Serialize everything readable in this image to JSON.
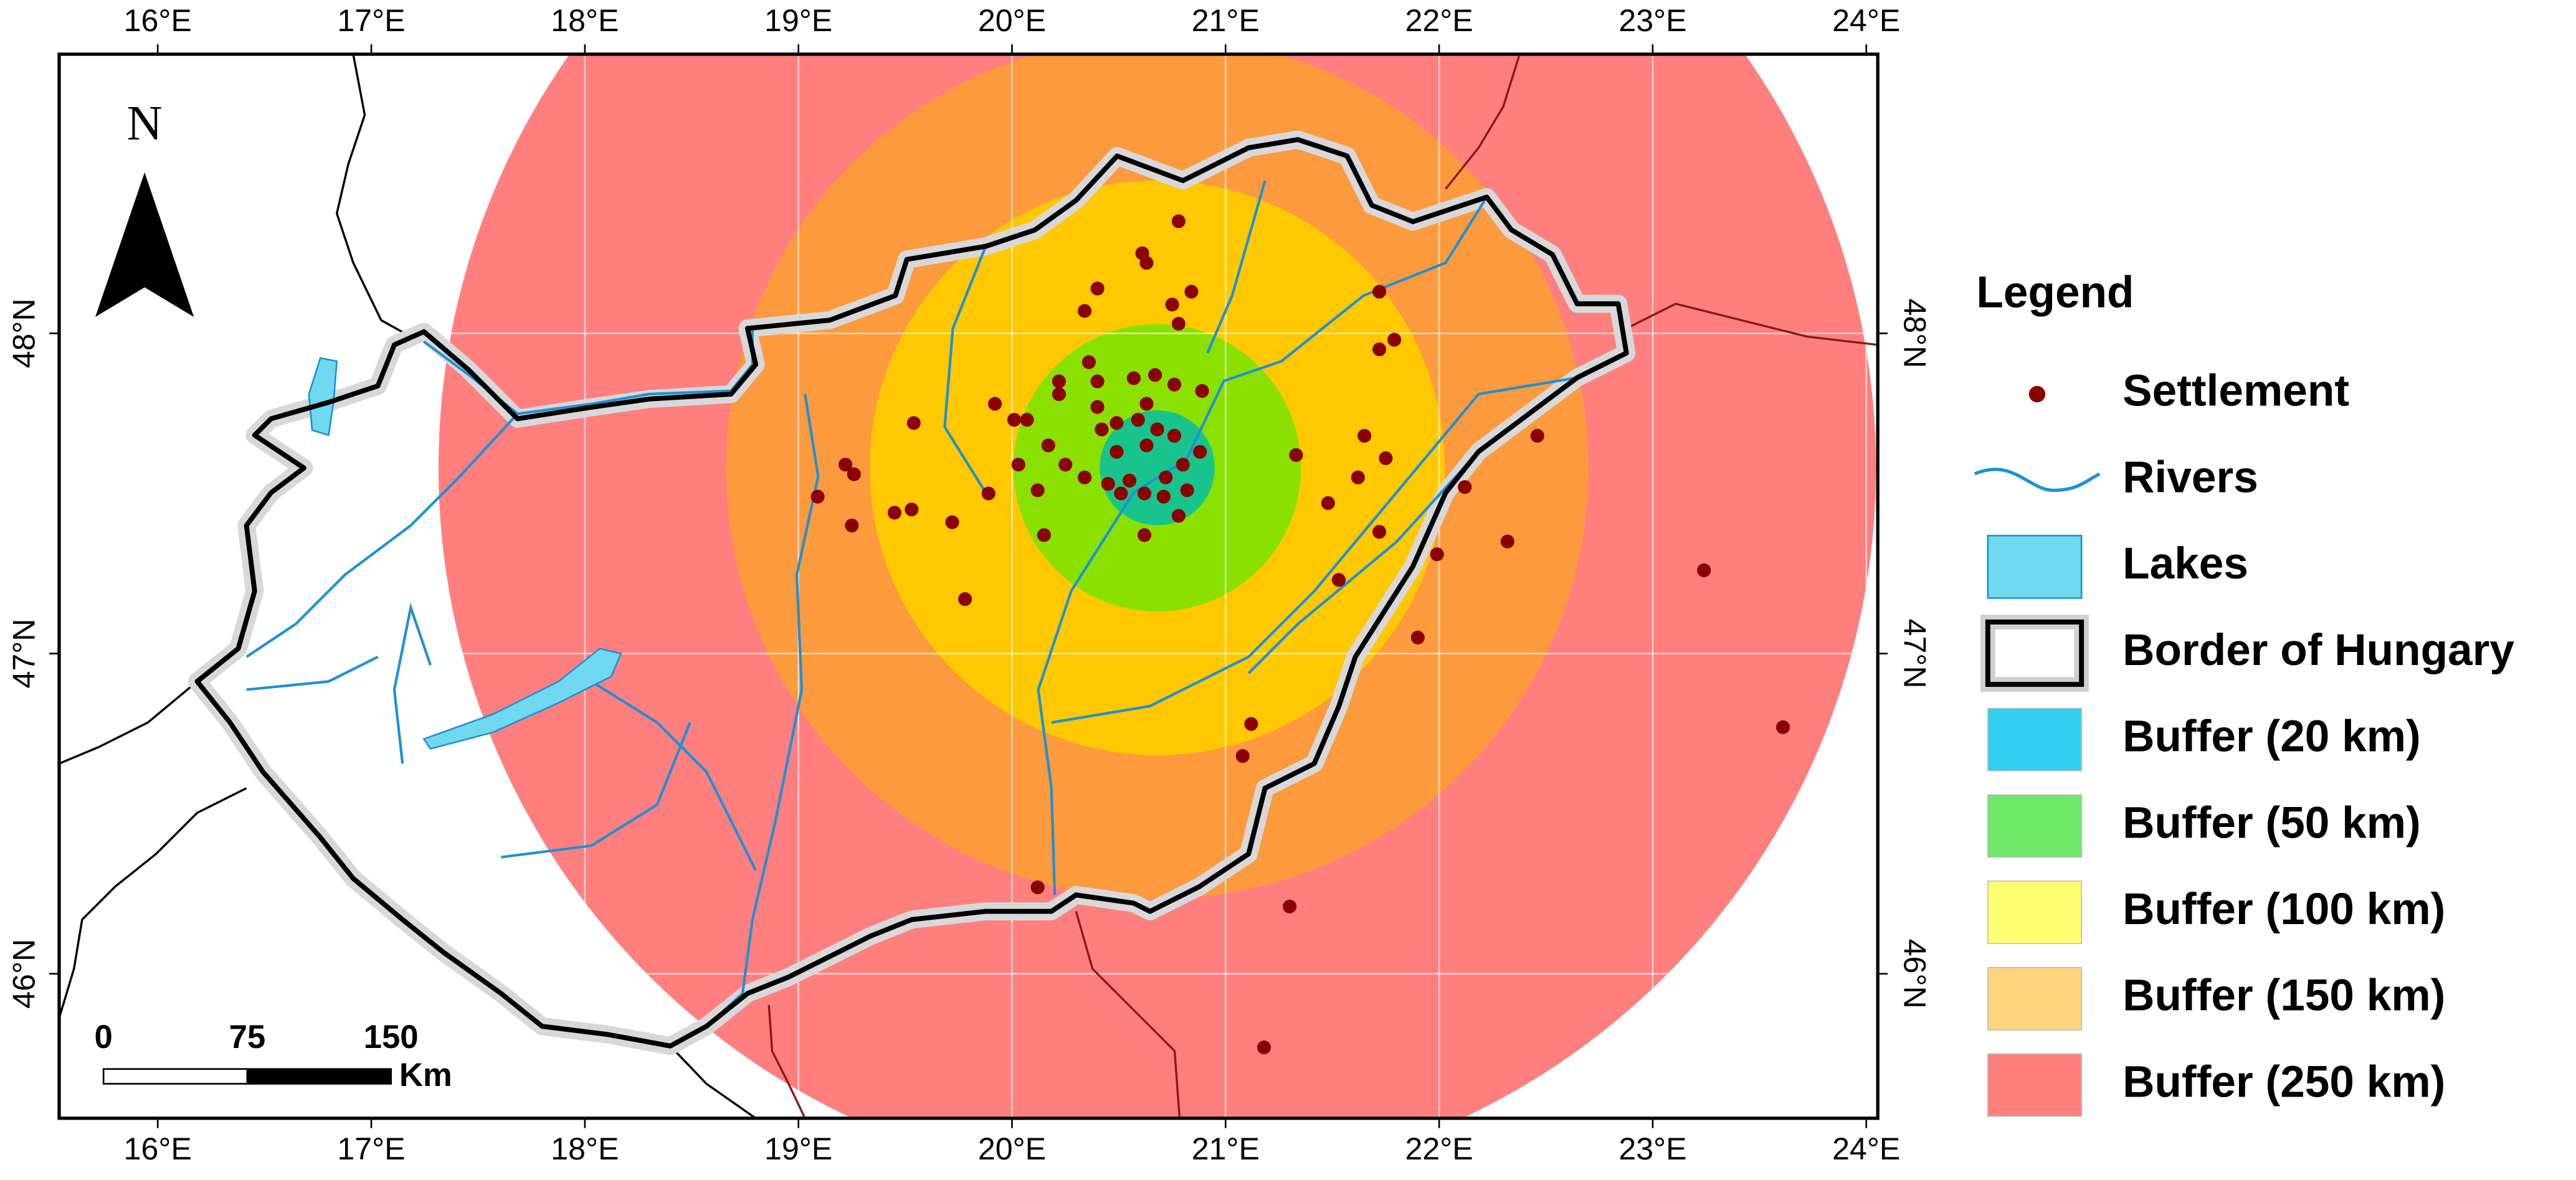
{
  "map": {
    "lon_ticks": [
      {
        "value": 16,
        "label": "16°E"
      },
      {
        "value": 17,
        "label": "17°E"
      },
      {
        "value": 18,
        "label": "18°E"
      },
      {
        "value": 19,
        "label": "19°E"
      },
      {
        "value": 20,
        "label": "20°E"
      },
      {
        "value": 21,
        "label": "21°E"
      },
      {
        "value": 22,
        "label": "22°E"
      },
      {
        "value": 23,
        "label": "23°E"
      },
      {
        "value": 24,
        "label": "24°E"
      }
    ],
    "lat_ticks": [
      {
        "value": 48,
        "label": "48°N"
      },
      {
        "value": 47,
        "label": "47°N"
      },
      {
        "value": 46,
        "label": "46°N"
      }
    ],
    "north_label": "N",
    "scale_bar": {
      "ticks": [
        0,
        75,
        150
      ],
      "unit": "Km"
    },
    "buffer_center": [
      20.68,
      47.58
    ],
    "buffers": [
      {
        "label": "Buffer (20 km)",
        "radius_km": 20,
        "color": "#33cff0",
        "map_color": "#19c48c"
      },
      {
        "label": "Buffer (50 km)",
        "radius_km": 50,
        "color": "#6fe86a",
        "map_color": "#8ae000"
      },
      {
        "label": "Buffer (100 km)",
        "radius_km": 100,
        "color": "#ffff73",
        "map_color": "#ffc800"
      },
      {
        "label": "Buffer (150 km)",
        "radius_km": 150,
        "color": "#ffd580",
        "map_color": "#fd9a3e"
      },
      {
        "label": "Buffer (250 km)",
        "radius_km": 250,
        "color": "#ff7f7f",
        "map_color": "#ff7f7f"
      }
    ],
    "legend": {
      "title": "Legend",
      "items": [
        {
          "label": "Settlement",
          "color": "#8b0000"
        },
        {
          "label": "Rivers",
          "color": "#1e90d6"
        },
        {
          "label": "Lakes",
          "color": "#70d9f0"
        },
        {
          "label": "Border of Hungary",
          "color": "#000000"
        }
      ]
    },
    "settlements": [
      [
        20.78,
        48.35
      ],
      [
        20.61,
        48.25
      ],
      [
        20.63,
        48.22
      ],
      [
        20.4,
        48.14
      ],
      [
        20.84,
        48.13
      ],
      [
        20.75,
        48.09
      ],
      [
        20.34,
        48.07
      ],
      [
        20.78,
        48.03
      ],
      [
        20.36,
        47.91
      ],
      [
        20.67,
        47.87
      ],
      [
        20.57,
        47.86
      ],
      [
        20.22,
        47.85
      ],
      [
        20.4,
        47.85
      ],
      [
        20.76,
        47.84
      ],
      [
        20.89,
        47.82
      ],
      [
        19.92,
        47.78
      ],
      [
        20.63,
        47.78
      ],
      [
        20.4,
        47.77
      ],
      [
        20.22,
        47.81
      ],
      [
        20.07,
        47.73
      ],
      [
        20.01,
        47.73
      ],
      [
        19.54,
        47.72
      ],
      [
        20.49,
        47.72
      ],
      [
        20.59,
        47.73
      ],
      [
        20.42,
        47.7
      ],
      [
        20.68,
        47.7
      ],
      [
        20.76,
        47.68
      ],
      [
        20.17,
        47.65
      ],
      [
        20.03,
        47.59
      ],
      [
        20.25,
        47.59
      ],
      [
        20.49,
        47.63
      ],
      [
        20.63,
        47.65
      ],
      [
        20.88,
        47.63
      ],
      [
        21.33,
        47.62
      ],
      [
        21.65,
        47.68
      ],
      [
        21.75,
        47.61
      ],
      [
        21.62,
        47.55
      ],
      [
        20.34,
        47.55
      ],
      [
        20.45,
        47.53
      ],
      [
        20.55,
        47.54
      ],
      [
        20.72,
        47.55
      ],
      [
        20.8,
        47.59
      ],
      [
        20.62,
        47.5
      ],
      [
        20.71,
        47.49
      ],
      [
        20.51,
        47.5
      ],
      [
        20.82,
        47.51
      ],
      [
        20.12,
        47.51
      ],
      [
        19.89,
        47.5
      ],
      [
        19.09,
        47.49
      ],
      [
        19.22,
        47.59
      ],
      [
        19.26,
        47.56
      ],
      [
        19.45,
        47.44
      ],
      [
        19.53,
        47.45
      ],
      [
        19.25,
        47.4
      ],
      [
        19.72,
        47.41
      ],
      [
        20.15,
        47.37
      ],
      [
        20.62,
        47.37
      ],
      [
        20.78,
        47.43
      ],
      [
        21.48,
        47.47
      ],
      [
        21.72,
        47.38
      ],
      [
        21.72,
        48.13
      ],
      [
        21.72,
        47.95
      ],
      [
        21.79,
        47.98
      ],
      [
        22.46,
        47.68
      ],
      [
        22.12,
        47.52
      ],
      [
        21.99,
        47.31
      ],
      [
        22.32,
        47.35
      ],
      [
        21.53,
        47.23
      ],
      [
        23.24,
        47.26
      ],
      [
        21.9,
        47.05
      ],
      [
        19.78,
        47.17
      ],
      [
        21.12,
        46.78
      ],
      [
        21.08,
        46.68
      ],
      [
        20.12,
        46.27
      ],
      [
        21.3,
        46.21
      ],
      [
        21.18,
        45.77
      ],
      [
        23.61,
        46.77
      ]
    ]
  }
}
